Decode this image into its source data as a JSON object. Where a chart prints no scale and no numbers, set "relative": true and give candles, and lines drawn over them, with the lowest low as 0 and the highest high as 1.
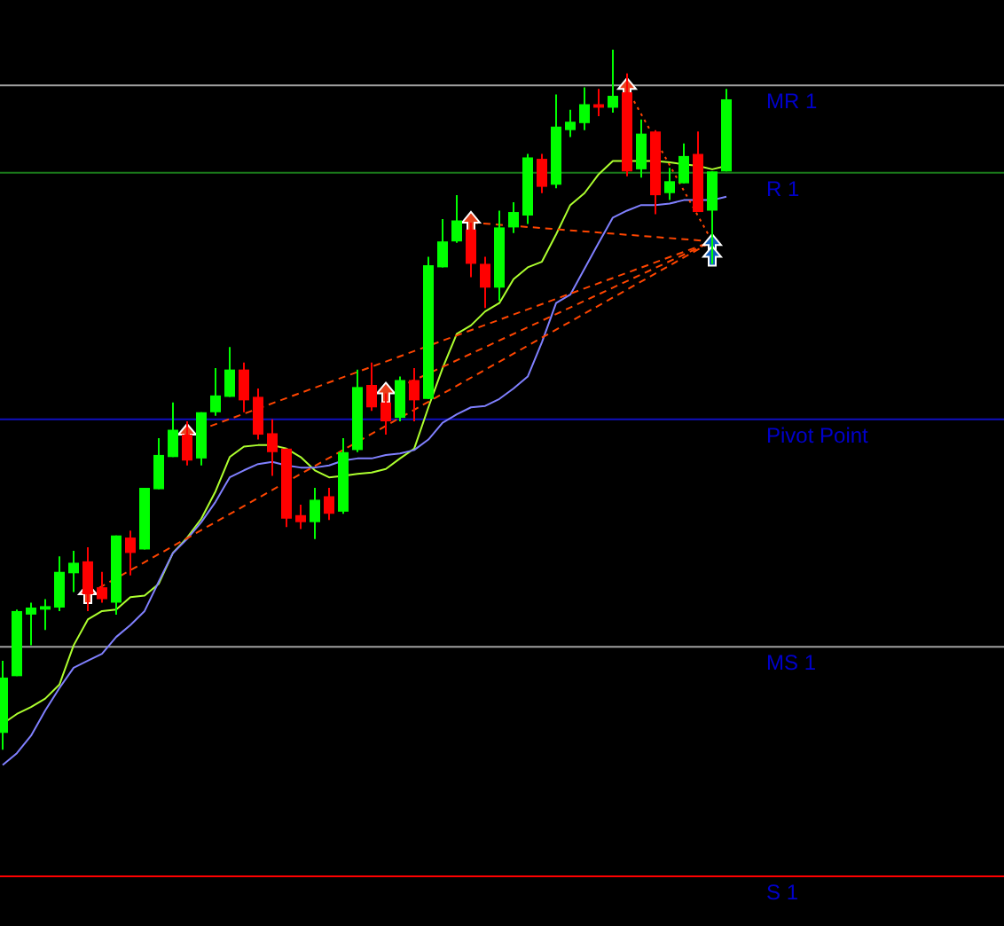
{
  "chart_data": {
    "type": "candlestick",
    "relative": true,
    "categories": [
      null,
      null,
      null,
      null,
      null,
      null,
      null,
      null,
      null,
      null,
      null,
      null,
      null,
      null,
      null,
      null,
      null,
      null,
      null,
      null,
      null,
      null,
      null,
      null,
      null,
      null,
      null,
      null,
      null,
      null,
      null,
      null,
      null,
      null,
      null,
      null,
      null,
      null,
      null,
      null,
      null,
      null,
      null,
      null,
      null,
      null,
      null,
      null,
      null,
      null,
      null,
      null
    ],
    "ohlc": [
      [
        0.024,
        0.127,
        0,
        0.103
      ],
      [
        0.105,
        0.2,
        0.105,
        0.198
      ],
      [
        0.193,
        0.21,
        0.149,
        0.203
      ],
      [
        0.2,
        0.215,
        0.171,
        0.205
      ],
      [
        0.203,
        0.276,
        0.198,
        0.254
      ],
      [
        0.252,
        0.284,
        0.225,
        0.267
      ],
      [
        0.269,
        0.289,
        0.198,
        0.222
      ],
      [
        0.232,
        0.254,
        0.21,
        0.215
      ],
      [
        0.21,
        0.306,
        0.193,
        0.306
      ],
      [
        0.303,
        0.313,
        0.249,
        0.281
      ],
      [
        0.286,
        0.374,
        0.286,
        0.374
      ],
      [
        0.372,
        0.445,
        0.372,
        0.421
      ],
      [
        0.418,
        0.496,
        0.418,
        0.457
      ],
      [
        0.45,
        0.469,
        0.406,
        0.413
      ],
      [
        0.416,
        0.482,
        0.406,
        0.482
      ],
      [
        0.482,
        0.545,
        0.477,
        0.506
      ],
      [
        0.504,
        0.575,
        0.504,
        0.543
      ],
      [
        0.543,
        0.553,
        0.482,
        0.499
      ],
      [
        0.504,
        0.516,
        0.443,
        0.45
      ],
      [
        0.452,
        0.472,
        0.391,
        0.425
      ],
      [
        0.43,
        0.43,
        0.318,
        0.33
      ],
      [
        0.335,
        0.35,
        0.315,
        0.325
      ],
      [
        0.325,
        0.374,
        0.301,
        0.357
      ],
      [
        0.362,
        0.374,
        0.328,
        0.337
      ],
      [
        0.34,
        0.445,
        0.337,
        0.425
      ],
      [
        0.428,
        0.543,
        0.425,
        0.518
      ],
      [
        0.521,
        0.553,
        0.484,
        0.489
      ],
      [
        0.496,
        0.509,
        0.45,
        0.469
      ],
      [
        0.474,
        0.533,
        0.469,
        0.528
      ],
      [
        0.528,
        0.545,
        0.469,
        0.499
      ],
      [
        0.501,
        0.704,
        0.501,
        0.692
      ],
      [
        0.689,
        0.758,
        0.689,
        0.726
      ],
      [
        0.726,
        0.792,
        0.724,
        0.756
      ],
      [
        0.743,
        0.753,
        0.675,
        0.694
      ],
      [
        0.694,
        0.704,
        0.631,
        0.66
      ],
      [
        0.66,
        0.77,
        0.641,
        0.746
      ],
      [
        0.746,
        0.782,
        0.738,
        0.768
      ],
      [
        0.763,
        0.851,
        0.751,
        0.846
      ],
      [
        0.844,
        0.851,
        0.795,
        0.804
      ],
      [
        0.807,
        0.936,
        0.802,
        0.89
      ],
      [
        0.885,
        0.914,
        0.875,
        0.897
      ],
      [
        0.895,
        0.946,
        0.885,
        0.922
      ],
      [
        0.922,
        0.944,
        0.905,
        0.917
      ],
      [
        0.917,
        1,
        0.91,
        0.934
      ],
      [
        0.939,
        0.966,
        0.819,
        0.826
      ],
      [
        0.829,
        0.9,
        0.817,
        0.88
      ],
      [
        0.883,
        0.885,
        0.765,
        0.792
      ],
      [
        0.795,
        0.831,
        0.785,
        0.812
      ],
      [
        0.809,
        0.866,
        0.809,
        0.848
      ],
      [
        0.851,
        0.883,
        0.768,
        0.768
      ],
      [
        0.77,
        0.826,
        0.694,
        0.826
      ],
      [
        0.826,
        0.944,
        0.826,
        0.929
      ]
    ],
    "colors": [
      "#00ff00",
      "#00ff00",
      "#00ff00",
      "#00ff00",
      "#00ff00",
      "#00ff00",
      "#ff0000",
      "#ff0000",
      "#00ff00",
      "#ff0000",
      "#00ff00",
      "#00ff00",
      "#00ff00",
      "#ff0000",
      "#00ff00",
      "#00ff00",
      "#00ff00",
      "#ff0000",
      "#ff0000",
      "#ff0000",
      "#ff0000",
      "#ff0000",
      "#00ff00",
      "#ff0000",
      "#00ff00",
      "#00ff00",
      "#ff0000",
      "#ff0000",
      "#00ff00",
      "#ff0000",
      "#00ff00",
      "#00ff00",
      "#00ff00",
      "#ff0000",
      "#ff0000",
      "#00ff00",
      "#00ff00",
      "#00ff00",
      "#ff0000",
      "#00ff00",
      "#00ff00",
      "#00ff00",
      "#ff0000",
      "#00ff00",
      "#ff0000",
      "#00ff00",
      "#ff0000",
      "#00ff00",
      "#00ff00",
      "#ff0000",
      "#00ff00",
      "#00ff00"
    ],
    "series": [
      {
        "type": "line",
        "color": "#adff2f",
        "values": [
          0.037,
          0.051,
          0.061,
          0.073,
          0.093,
          0.149,
          0.186,
          0.198,
          0.2,
          0.218,
          0.22,
          0.237,
          0.281,
          0.303,
          0.33,
          0.369,
          0.418,
          0.433,
          0.435,
          0.435,
          0.43,
          0.418,
          0.399,
          0.389,
          0.391,
          0.394,
          0.396,
          0.401,
          0.416,
          0.43,
          0.489,
          0.545,
          0.594,
          0.606,
          0.626,
          0.638,
          0.672,
          0.689,
          0.697,
          0.736,
          0.778,
          0.795,
          0.822,
          0.841,
          0.841,
          0.841,
          0.841,
          0.839,
          0.836,
          0.834,
          0.829,
          0.834
        ]
      },
      {
        "type": "line",
        "color": "#8080ff",
        "values": [
          -0.022,
          -0.005,
          0.02,
          0.056,
          0.088,
          0.117,
          0.127,
          0.137,
          0.161,
          0.178,
          0.198,
          0.24,
          0.281,
          0.301,
          0.325,
          0.354,
          0.389,
          0.399,
          0.408,
          0.411,
          0.406,
          0.403,
          0.403,
          0.406,
          0.413,
          0.416,
          0.416,
          0.421,
          0.423,
          0.428,
          0.443,
          0.467,
          0.479,
          0.489,
          0.491,
          0.501,
          0.516,
          0.533,
          0.582,
          0.638,
          0.65,
          0.687,
          0.724,
          0.76,
          0.77,
          0.778,
          0.778,
          0.78,
          0.785,
          0.785,
          0.785,
          0.79
        ]
      },
      {
        "type": "line",
        "color": "#ff4500",
        "line_style": "dashed",
        "values": [
          null,
          null,
          null,
          null,
          null,
          null,
          0.222,
          null,
          null,
          null,
          null,
          null,
          null,
          null,
          null,
          null,
          null,
          null,
          null,
          null,
          null,
          null,
          null,
          null,
          null,
          null,
          null,
          null,
          null,
          null,
          null,
          null,
          null,
          null,
          null,
          null,
          null,
          null,
          null,
          null,
          null,
          null,
          null,
          null,
          null,
          null,
          null,
          null,
          null,
          null,
          0.726,
          null
        ]
      },
      {
        "type": "line",
        "color": "#ff4500",
        "line_style": "dashed",
        "values": [
          null,
          null,
          null,
          null,
          null,
          null,
          null,
          null,
          null,
          null,
          null,
          null,
          null,
          0.45,
          null,
          null,
          null,
          null,
          null,
          null,
          null,
          null,
          null,
          null,
          null,
          null,
          null,
          null,
          null,
          null,
          null,
          null,
          null,
          null,
          null,
          null,
          null,
          null,
          null,
          null,
          null,
          null,
          null,
          null,
          null,
          null,
          null,
          null,
          null,
          null,
          0.726,
          null
        ]
      },
      {
        "type": "line",
        "color": "#ff4500",
        "line_style": "dashed",
        "values": [
          null,
          null,
          null,
          null,
          null,
          null,
          null,
          null,
          null,
          null,
          null,
          null,
          null,
          null,
          null,
          null,
          null,
          null,
          null,
          null,
          null,
          null,
          null,
          null,
          null,
          null,
          null,
          0.509,
          null,
          null,
          null,
          null,
          null,
          null,
          null,
          null,
          null,
          null,
          null,
          null,
          null,
          null,
          null,
          null,
          null,
          null,
          null,
          null,
          null,
          null,
          0.726,
          null
        ]
      },
      {
        "type": "line",
        "color": "#ff4500",
        "line_style": "dashed",
        "values": [
          null,
          null,
          null,
          null,
          null,
          null,
          null,
          null,
          null,
          null,
          null,
          null,
          null,
          null,
          null,
          null,
          null,
          null,
          null,
          null,
          null,
          null,
          null,
          null,
          null,
          null,
          null,
          null,
          null,
          null,
          null,
          null,
          null,
          0.753,
          null,
          null,
          null,
          null,
          null,
          null,
          null,
          null,
          null,
          null,
          null,
          null,
          null,
          null,
          null,
          null,
          0.726,
          null
        ]
      },
      {
        "type": "line",
        "color": "#ff4500",
        "line_style": "dotted",
        "values": [
          null,
          null,
          null,
          null,
          null,
          null,
          null,
          null,
          null,
          null,
          null,
          null,
          null,
          null,
          null,
          null,
          null,
          null,
          null,
          null,
          null,
          null,
          null,
          null,
          null,
          null,
          null,
          null,
          null,
          null,
          null,
          null,
          null,
          null,
          null,
          null,
          null,
          null,
          null,
          null,
          null,
          null,
          null,
          null,
          0.944,
          null,
          null,
          null,
          null,
          null,
          0.726,
          null
        ]
      },
      {
        "type": "scatter",
        "color": "#e8401c",
        "marker": "triangle",
        "values": [
          null,
          null,
          null,
          null,
          null,
          null,
          0.222,
          null,
          null,
          null,
          null,
          null,
          null,
          0.45,
          null,
          null,
          null,
          null,
          null,
          null,
          null,
          null,
          null,
          null,
          null,
          null,
          null,
          0.509,
          null,
          null,
          null,
          null,
          null,
          0.753,
          null,
          null,
          null,
          null,
          null,
          null,
          null,
          null,
          null,
          null,
          0.944,
          null,
          null,
          null,
          null,
          null,
          null,
          null
        ]
      },
      {
        "type": "scatter",
        "color": "#1060c0",
        "marker": "triangle",
        "values": [
          null,
          null,
          null,
          null,
          null,
          null,
          null,
          null,
          null,
          null,
          null,
          null,
          null,
          null,
          null,
          null,
          null,
          null,
          null,
          null,
          null,
          null,
          null,
          null,
          null,
          null,
          null,
          null,
          null,
          null,
          null,
          null,
          null,
          null,
          null,
          null,
          null,
          null,
          null,
          null,
          null,
          null,
          null,
          null,
          null,
          null,
          null,
          null,
          null,
          null,
          0.721,
          null
        ]
      },
      {
        "type": "scatter",
        "color": "#1060c0",
        "marker": "triangle",
        "values": [
          null,
          null,
          null,
          null,
          null,
          null,
          null,
          null,
          null,
          null,
          null,
          null,
          null,
          null,
          null,
          null,
          null,
          null,
          null,
          null,
          null,
          null,
          null,
          null,
          null,
          null,
          null,
          null,
          null,
          null,
          null,
          null,
          null,
          null,
          null,
          null,
          null,
          null,
          null,
          null,
          null,
          null,
          null,
          null,
          null,
          null,
          null,
          null,
          null,
          null,
          0.704,
          null
        ]
      }
    ],
    "ref_lines": [
      {
        "axis": "y",
        "value": 0.949,
        "label": "MR 1",
        "color": "#a0a0a0"
      },
      {
        "axis": "y",
        "value": 0.824,
        "label": "R 1",
        "color": "#1a7a1a"
      },
      {
        "axis": "y",
        "value": 0.472,
        "label": "Pivot Point",
        "color": "#1010c0"
      },
      {
        "axis": "y",
        "value": 0.147,
        "label": "MS 1",
        "color": "#a0a0a0"
      },
      {
        "axis": "y",
        "value": -0.181,
        "label": "S 1",
        "color": "#ff0000"
      }
    ]
  }
}
